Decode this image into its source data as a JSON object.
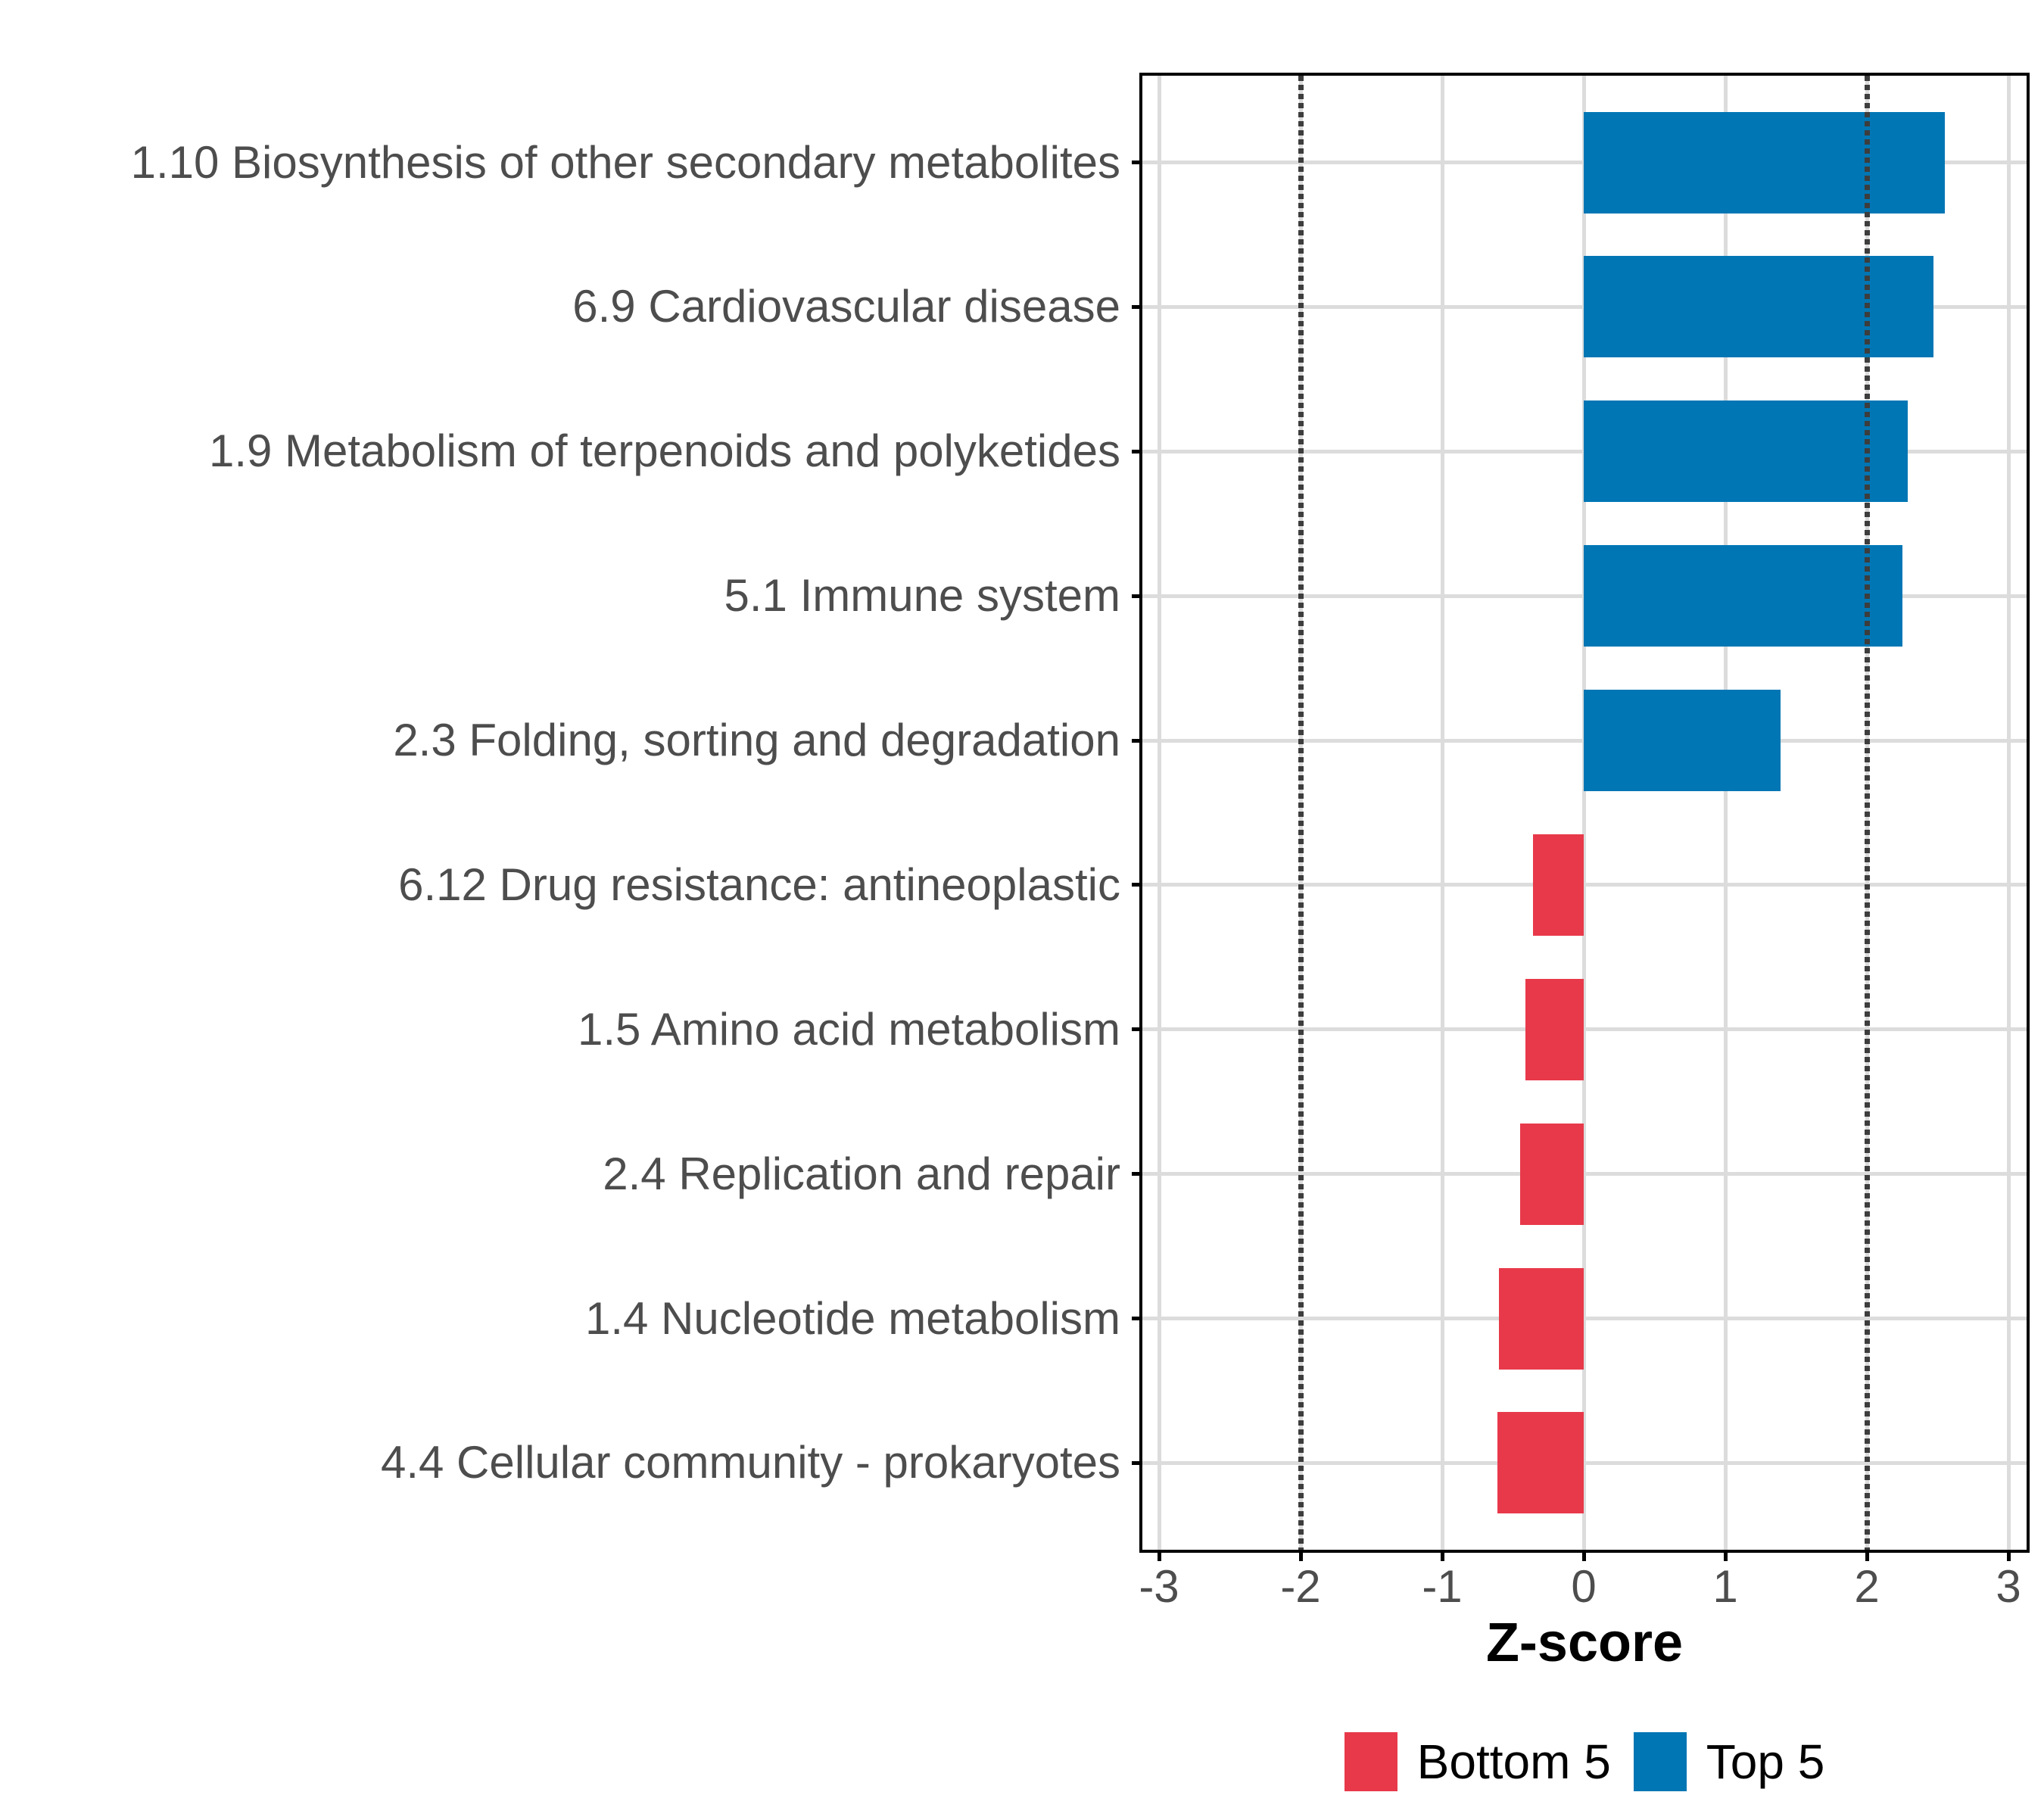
{
  "chart_data": {
    "type": "bar",
    "orientation": "horizontal",
    "title": "",
    "xlabel": "Z-score",
    "ylabel": "",
    "xlim": [
      -3.1,
      3.1
    ],
    "x_ticks": [
      "-3",
      "-2",
      "-1",
      "0",
      "1",
      "2",
      "3"
    ],
    "x_tick_values": [
      -3,
      -2,
      -1,
      0,
      1,
      2,
      3
    ],
    "reference_lines": [
      -2,
      2
    ],
    "grid": true,
    "legend_position": "bottom",
    "categories": [
      "1.10 Biosynthesis of other secondary metabolites",
      "6.9 Cardiovascular disease",
      "1.9 Metabolism of terpenoids and polyketides",
      "5.1 Immune system",
      "2.3 Folding, sorting and degradation",
      "6.12 Drug resistance: antineoplastic",
      "1.5 Amino acid metabolism",
      "2.4 Replication and repair",
      "1.4 Nucleotide metabolism",
      "4.4 Cellular community - prokaryotes"
    ],
    "values": [
      2.55,
      2.47,
      2.29,
      2.25,
      1.39,
      -0.36,
      -0.41,
      -0.45,
      -0.6,
      -0.61
    ],
    "groups": [
      "Top 5",
      "Top 5",
      "Top 5",
      "Top 5",
      "Top 5",
      "Bottom 5",
      "Bottom 5",
      "Bottom 5",
      "Bottom 5",
      "Bottom 5"
    ],
    "legend": [
      {
        "label": "Bottom 5",
        "color": "#E8394A"
      },
      {
        "label": "Top 5",
        "color": "#0076B4"
      }
    ],
    "colors": {
      "Top 5": "#0076B4",
      "Bottom 5": "#E8394A"
    },
    "axis_text_color": "#4D4D4D",
    "axis_title_color": "#000000",
    "grid_color": "#DCDCDC",
    "reference_line_color": "#3D3D3D",
    "panel_border_color": "#000000"
  }
}
